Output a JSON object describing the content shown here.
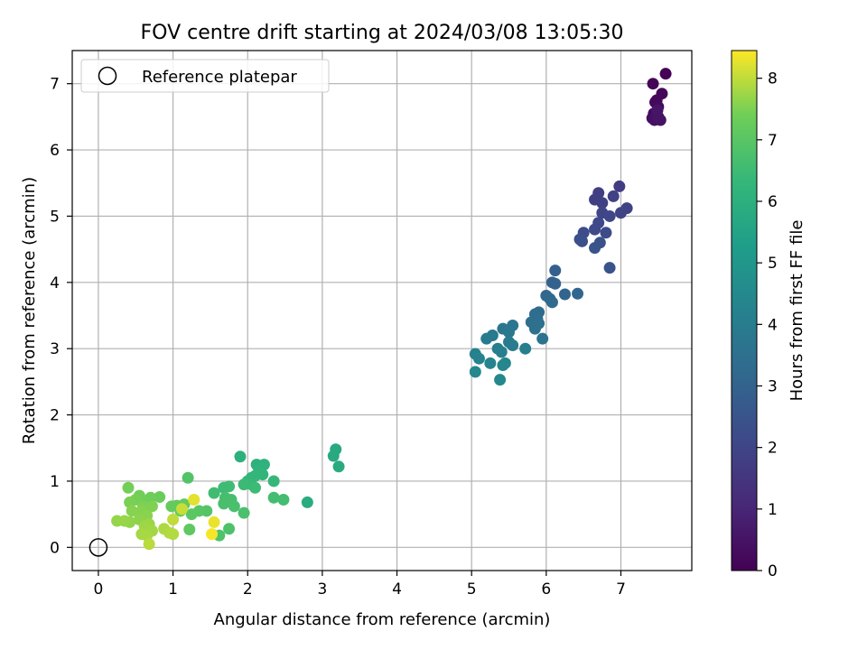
{
  "chart_data": {
    "type": "scatter",
    "title": "FOV centre drift starting at 2024/03/08 13:05:30",
    "xlabel": "Angular distance from reference (arcmin)",
    "ylabel": "Rotation from reference (arcmin)",
    "xlim": [
      -0.35,
      7.95
    ],
    "ylim": [
      -0.35,
      7.5
    ],
    "xticks": [
      "0",
      "1",
      "2",
      "3",
      "4",
      "5",
      "6",
      "7"
    ],
    "yticks": [
      "0",
      "1",
      "2",
      "3",
      "4",
      "5",
      "6",
      "7"
    ],
    "grid": true,
    "colormap": "viridis",
    "colorbar": {
      "label": "Hours from first FF file",
      "range": [
        0,
        8.45
      ],
      "ticks": [
        "0",
        "1",
        "2",
        "3",
        "4",
        "5",
        "6",
        "7",
        "8"
      ]
    },
    "legend": {
      "position": "top-left",
      "entries": [
        "Reference platepar"
      ]
    },
    "reference_point": {
      "x": 0,
      "y": 0
    },
    "point_fields": [
      "x",
      "y",
      "hours"
    ],
    "points": [
      [
        7.6,
        7.15,
        0.05
      ],
      [
        7.43,
        7.0,
        0.1
      ],
      [
        7.55,
        6.85,
        0.15
      ],
      [
        7.48,
        6.75,
        0.2
      ],
      [
        7.46,
        6.72,
        0.22
      ],
      [
        7.5,
        6.65,
        0.25
      ],
      [
        7.44,
        6.55,
        0.3
      ],
      [
        7.42,
        6.48,
        0.35
      ],
      [
        7.45,
        6.45,
        0.4
      ],
      [
        7.53,
        6.45,
        0.45
      ],
      [
        7.5,
        6.5,
        0.5
      ],
      [
        7.49,
        6.6,
        0.55
      ],
      [
        6.98,
        5.45,
        1.7
      ],
      [
        6.7,
        5.35,
        1.75
      ],
      [
        6.65,
        5.25,
        1.8
      ],
      [
        6.75,
        5.2,
        1.85
      ],
      [
        6.9,
        5.3,
        1.88
      ],
      [
        7.08,
        5.12,
        1.9
      ],
      [
        7.0,
        5.05,
        1.95
      ],
      [
        6.75,
        5.05,
        2.0
      ],
      [
        6.85,
        5.0,
        2.05
      ],
      [
        6.7,
        4.9,
        2.1
      ],
      [
        6.65,
        4.8,
        2.15
      ],
      [
        6.8,
        4.75,
        2.2
      ],
      [
        6.5,
        4.75,
        2.25
      ],
      [
        6.45,
        4.65,
        2.3
      ],
      [
        6.48,
        4.62,
        2.35
      ],
      [
        6.72,
        4.6,
        2.4
      ],
      [
        6.65,
        4.52,
        2.45
      ],
      [
        6.85,
        4.22,
        2.5
      ],
      [
        6.12,
        4.18,
        2.9
      ],
      [
        6.08,
        4.0,
        2.95
      ],
      [
        6.12,
        3.98,
        3.0
      ],
      [
        6.25,
        3.82,
        3.05
      ],
      [
        6.42,
        3.83,
        3.1
      ],
      [
        6.0,
        3.8,
        3.15
      ],
      [
        6.05,
        3.75,
        3.2
      ],
      [
        6.08,
        3.7,
        3.25
      ],
      [
        5.9,
        3.55,
        3.3
      ],
      [
        5.85,
        3.52,
        3.35
      ],
      [
        5.88,
        3.45,
        3.4
      ],
      [
        5.8,
        3.4,
        3.45
      ],
      [
        5.9,
        3.38,
        3.5
      ],
      [
        5.85,
        3.3,
        3.55
      ],
      [
        5.95,
        3.15,
        3.6
      ],
      [
        5.55,
        3.35,
        3.7
      ],
      [
        5.42,
        3.3,
        3.75
      ],
      [
        5.5,
        3.25,
        3.8
      ],
      [
        5.28,
        3.2,
        3.85
      ],
      [
        5.2,
        3.15,
        3.9
      ],
      [
        5.5,
        3.1,
        3.95
      ],
      [
        5.55,
        3.05,
        4.0
      ],
      [
        5.35,
        3.0,
        4.05
      ],
      [
        5.72,
        3.0,
        4.1
      ],
      [
        5.4,
        2.95,
        4.15
      ],
      [
        5.05,
        2.92,
        4.2
      ],
      [
        5.1,
        2.85,
        4.25
      ],
      [
        5.25,
        2.78,
        4.3
      ],
      [
        5.45,
        2.78,
        4.35
      ],
      [
        5.42,
        2.75,
        4.4
      ],
      [
        5.05,
        2.65,
        4.45
      ],
      [
        5.38,
        2.53,
        4.5
      ],
      [
        3.18,
        1.48,
        5.7
      ],
      [
        3.15,
        1.38,
        5.75
      ],
      [
        3.22,
        1.22,
        5.8
      ],
      [
        2.8,
        0.68,
        5.85
      ],
      [
        1.9,
        1.37,
        6.0
      ],
      [
        2.12,
        1.25,
        6.05
      ],
      [
        2.22,
        1.25,
        6.1
      ],
      [
        2.15,
        1.15,
        6.15
      ],
      [
        2.2,
        1.1,
        6.2
      ],
      [
        2.05,
        1.05,
        6.25
      ],
      [
        2.1,
        1.08,
        6.28
      ],
      [
        2.0,
        1.0,
        6.3
      ],
      [
        2.35,
        1.0,
        6.35
      ],
      [
        2.05,
        0.95,
        6.4
      ],
      [
        1.95,
        0.95,
        6.45
      ],
      [
        2.1,
        0.9,
        6.48
      ],
      [
        1.68,
        0.9,
        6.5
      ],
      [
        1.75,
        0.92,
        6.52
      ],
      [
        1.55,
        0.82,
        6.55
      ],
      [
        2.35,
        0.75,
        6.6
      ],
      [
        2.48,
        0.72,
        6.62
      ],
      [
        1.7,
        0.75,
        6.65
      ],
      [
        1.78,
        0.72,
        6.68
      ],
      [
        1.68,
        0.66,
        6.7
      ],
      [
        1.82,
        0.62,
        6.72
      ],
      [
        1.95,
        0.52,
        6.75
      ],
      [
        1.75,
        0.28,
        6.8
      ],
      [
        1.62,
        0.18,
        6.82
      ],
      [
        1.2,
        1.05,
        6.9
      ],
      [
        1.45,
        0.55,
        6.95
      ],
      [
        1.35,
        0.55,
        7.0
      ],
      [
        1.25,
        0.5,
        7.05
      ],
      [
        1.22,
        0.27,
        7.1
      ],
      [
        1.05,
        0.63,
        7.15
      ],
      [
        0.98,
        0.62,
        7.2
      ],
      [
        1.15,
        0.65,
        7.22
      ],
      [
        1.1,
        0.55,
        7.25
      ],
      [
        0.82,
        0.76,
        7.3
      ],
      [
        0.7,
        0.75,
        7.35
      ],
      [
        0.62,
        0.7,
        7.38
      ],
      [
        0.55,
        0.78,
        7.4
      ],
      [
        0.4,
        0.9,
        7.42
      ],
      [
        0.5,
        0.72,
        7.45
      ],
      [
        0.42,
        0.68,
        7.48
      ],
      [
        0.6,
        0.62,
        7.5
      ],
      [
        0.72,
        0.62,
        7.52
      ],
      [
        0.58,
        0.55,
        7.55
      ],
      [
        0.45,
        0.55,
        7.58
      ],
      [
        0.65,
        0.48,
        7.6
      ],
      [
        0.55,
        0.42,
        7.62
      ],
      [
        0.42,
        0.38,
        7.65
      ],
      [
        0.25,
        0.4,
        7.68
      ],
      [
        0.35,
        0.4,
        7.7
      ],
      [
        0.68,
        0.35,
        7.72
      ],
      [
        0.62,
        0.32,
        7.75
      ],
      [
        0.72,
        0.25,
        7.78
      ],
      [
        0.58,
        0.2,
        7.8
      ],
      [
        0.65,
        0.18,
        7.82
      ],
      [
        0.88,
        0.28,
        7.85
      ],
      [
        0.95,
        0.22,
        7.88
      ],
      [
        1.0,
        0.2,
        7.9
      ],
      [
        0.68,
        0.05,
        7.95
      ],
      [
        1.0,
        0.42,
        8.0
      ],
      [
        1.12,
        0.58,
        8.05
      ],
      [
        1.28,
        0.72,
        8.25
      ],
      [
        1.55,
        0.38,
        8.3
      ],
      [
        1.52,
        0.2,
        8.4
      ]
    ]
  }
}
